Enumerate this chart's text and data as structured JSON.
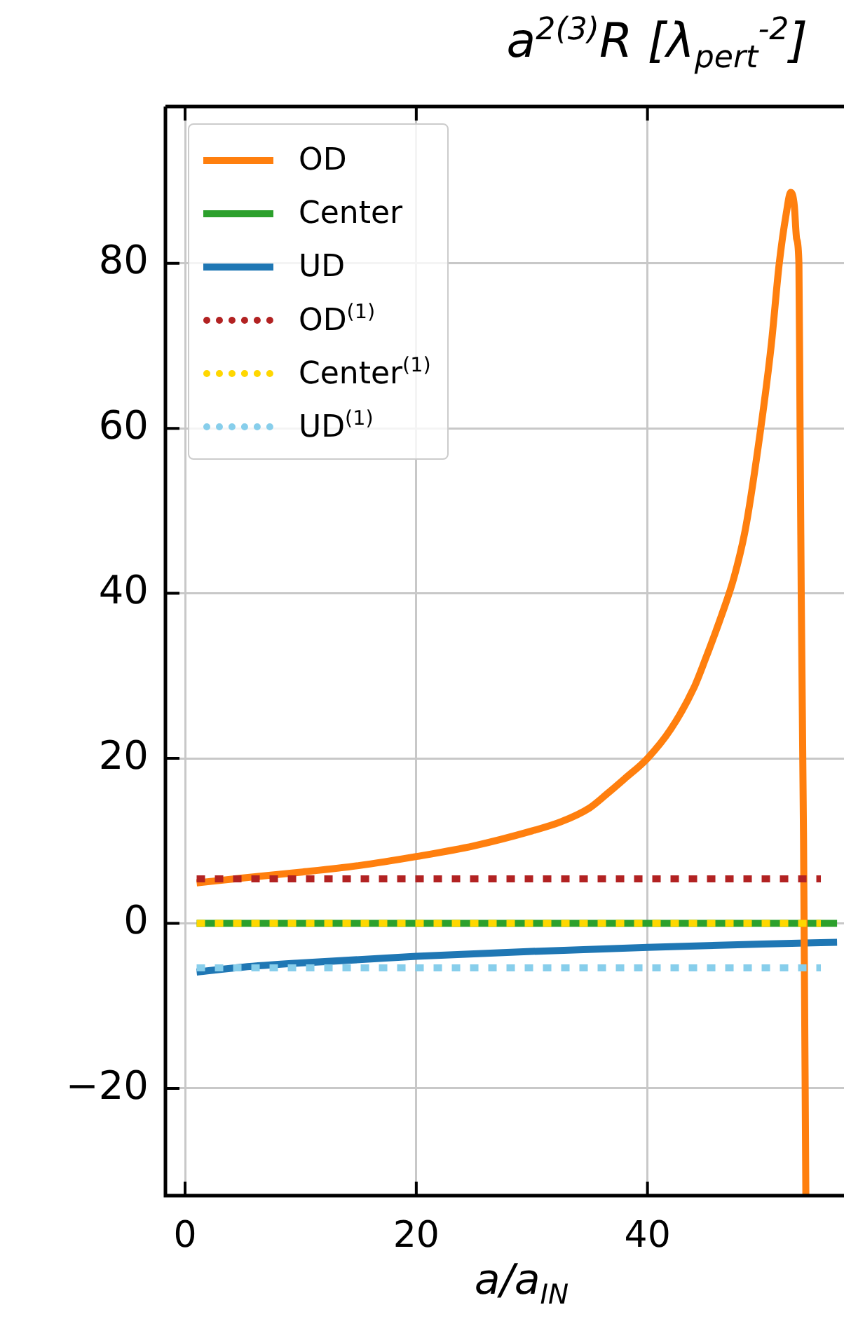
{
  "chart_data": {
    "type": "line",
    "title": "a$^{2(3)}$R  [λ$_{pert}$$^{-2}$]",
    "xlabel": "a/a$_{IN}$",
    "xlim": [
      -1.7,
      57
    ],
    "xticks": [
      0,
      20,
      40
    ],
    "ylim": [
      -33,
      99
    ],
    "yticks": [
      {
        "value": -20,
        "label": "−20"
      },
      0,
      20,
      40,
      60,
      80
    ],
    "grid": true,
    "legend": "top left",
    "marker": "none",
    "series": [
      {
        "name": "OD",
        "color": "#ff7f0e",
        "line_style": "solid",
        "x": [
          1,
          5,
          10,
          15,
          20,
          25,
          30,
          32.5,
          35,
          36.5,
          38,
          40,
          42,
          44,
          45,
          46.4,
          47.5,
          48.5,
          49.8,
          50.7,
          51.4,
          52,
          52.4,
          52.7,
          52.9,
          53.1,
          53.2,
          53.3,
          53.5,
          53.7
        ],
        "values": [
          4.9,
          5.5,
          6.2,
          7,
          8.1,
          9.4,
          11.2,
          12.3,
          14,
          15.7,
          17.5,
          20,
          23.5,
          28.5,
          32,
          37.3,
          42,
          48,
          60,
          70,
          80,
          86,
          88.6,
          87,
          83,
          80,
          60,
          40,
          10,
          -33
        ]
      },
      {
        "name": "Center",
        "color": "#2ca02c",
        "line_style": "solid",
        "x": [
          1,
          56.4
        ],
        "values": [
          0,
          0
        ]
      },
      {
        "name": "UD",
        "color": "#1f77b4",
        "line_style": "solid",
        "x": [
          1,
          5,
          10,
          20,
          30,
          40,
          50,
          56.4
        ],
        "values": [
          -5.9,
          -5.3,
          -4.8,
          -4,
          -3.4,
          -2.9,
          -2.5,
          -2.3
        ]
      },
      {
        "name": "OD$^{(1)}$",
        "color": "#b22222",
        "line_style": "dotted",
        "x": [
          1,
          55
        ],
        "values": [
          5.4,
          5.4
        ]
      },
      {
        "name": "Center$^{(1)}$",
        "color": "#ffd700",
        "line_style": "dotted",
        "x": [
          1,
          55
        ],
        "values": [
          0,
          0
        ]
      },
      {
        "name": "UD$^{(1)}$",
        "color": "#87ceeb",
        "line_style": "dotted",
        "x": [
          1,
          55
        ],
        "values": [
          -5.4,
          -5.4
        ]
      }
    ]
  }
}
